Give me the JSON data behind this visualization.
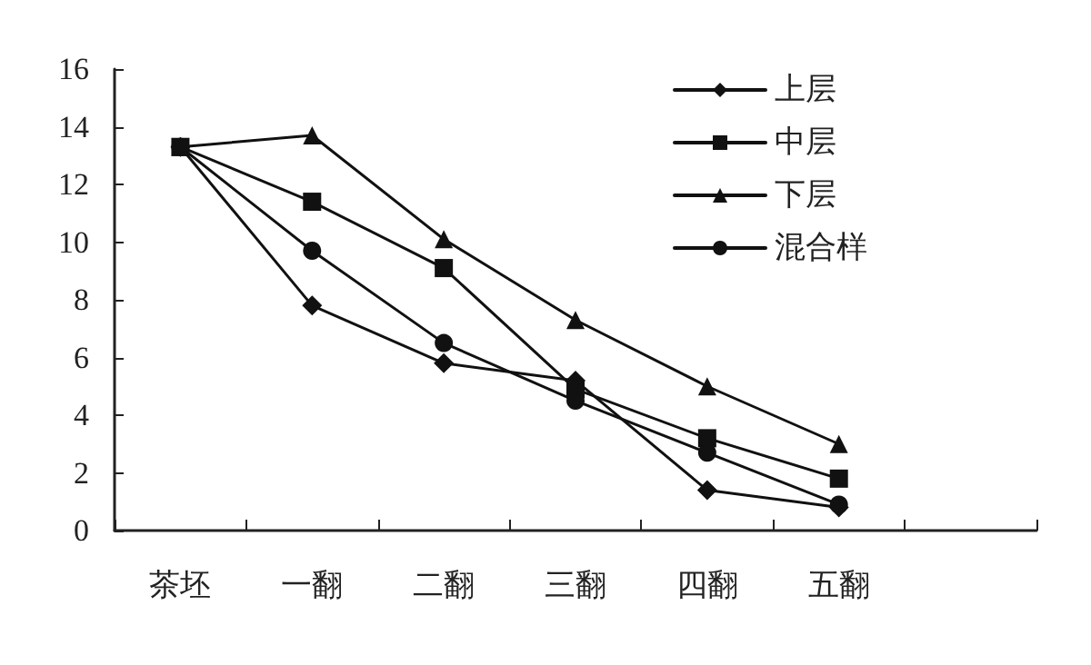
{
  "chart_data": {
    "type": "line",
    "categories": [
      "茶坯",
      "一翻",
      "二翻",
      "三翻",
      "四翻",
      "五翻",
      null
    ],
    "series": [
      {
        "name": "上层",
        "color": "#111111",
        "marker": "diamond",
        "values": [
          13.3,
          7.8,
          5.8,
          5.2,
          1.4,
          0.8,
          null
        ]
      },
      {
        "name": "中层",
        "color": "#111111",
        "marker": "square",
        "values": [
          13.3,
          11.4,
          9.1,
          4.9,
          3.2,
          1.8,
          null
        ]
      },
      {
        "name": "下层",
        "color": "#111111",
        "marker": "triangle",
        "values": [
          13.3,
          13.7,
          10.1,
          7.3,
          5.0,
          3.0,
          null
        ]
      },
      {
        "name": "混合样",
        "color": "#111111",
        "marker": "circle",
        "values": [
          13.3,
          9.7,
          6.5,
          4.5,
          2.7,
          0.9,
          null
        ]
      }
    ],
    "ylim": [
      0,
      16
    ],
    "yticks": [
      0,
      2,
      4,
      6,
      8,
      10,
      12,
      14,
      16
    ],
    "grid": false,
    "legend": "top right",
    "line_style": "solid"
  }
}
